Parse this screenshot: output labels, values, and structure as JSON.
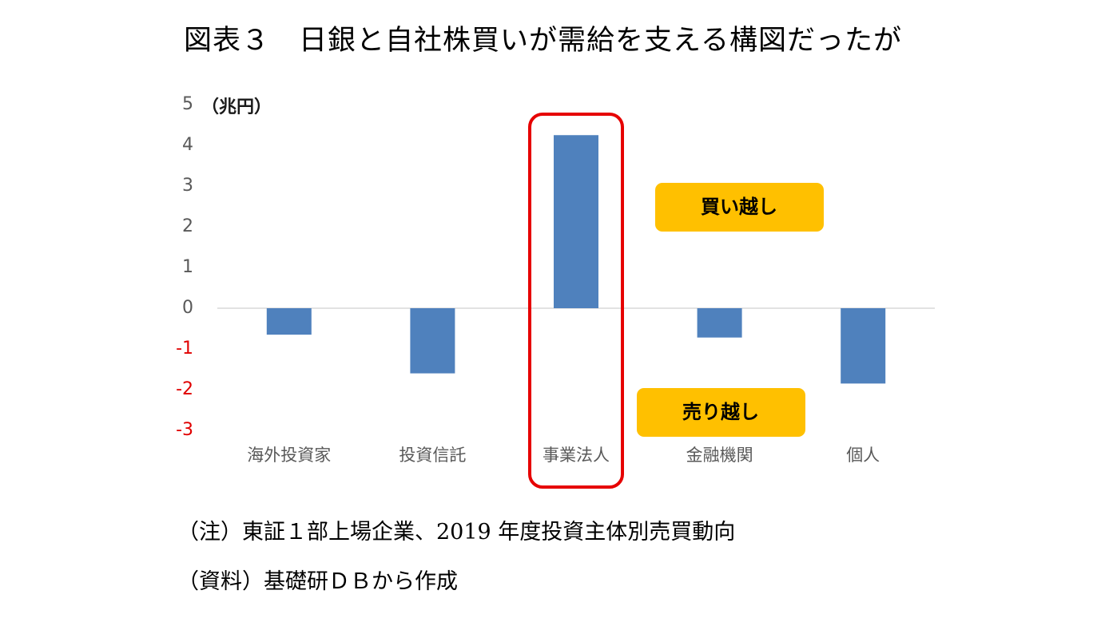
{
  "title": "図表３　日銀と自社株買いが需給を支える構図だったが",
  "notes": {
    "note": "（注）東証１部上場企業、2019 年度投資主体別売買動向",
    "source": "（資料）基礎研ＤＢから作成"
  },
  "chart_data": {
    "type": "bar",
    "unit_label": "（兆円）",
    "categories": [
      "海外投資家",
      "投資信託",
      "事業法人",
      "金融機関",
      "個人"
    ],
    "values": [
      -0.65,
      -1.6,
      4.25,
      -0.72,
      -1.85
    ],
    "ylim": [
      -3,
      5
    ],
    "yticks": [
      5,
      4,
      3,
      2,
      1,
      0,
      -1,
      -2,
      -3
    ],
    "grid": false,
    "highlighted_category": "事業法人",
    "annotations": {
      "buy": "買い越し",
      "sell": "売り越し"
    },
    "colors": {
      "bar": "#4f81bd",
      "negative_tick": "#e00000",
      "positive_tick": "#595959",
      "highlight_border": "#e60000",
      "annotation_box": "#ffc000",
      "zero_line": "#d9d9d9"
    }
  }
}
